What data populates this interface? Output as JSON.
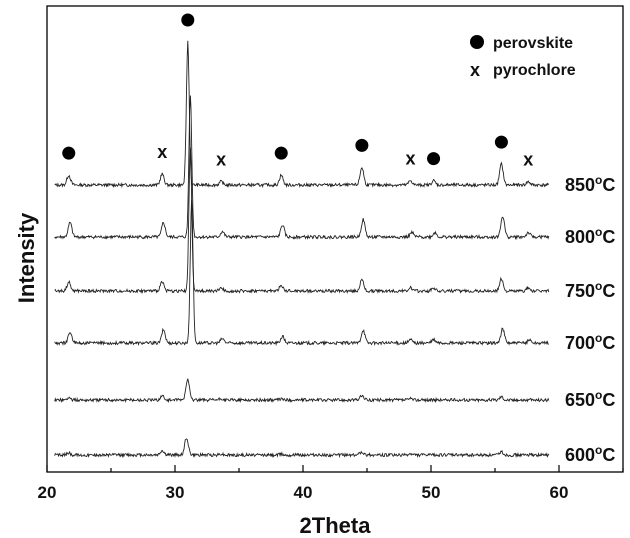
{
  "chart_data": {
    "type": "line",
    "title": "",
    "xlabel": "2Theta",
    "ylabel": "Intensity",
    "xlim": [
      20,
      65
    ],
    "x_ticks": [
      20,
      30,
      40,
      50,
      60
    ],
    "x_tick_labels": [
      "20",
      "30",
      "40",
      "50",
      "60"
    ],
    "grid": false,
    "legend": {
      "placement": "top-right",
      "entries": [
        {
          "symbol": "filled-circle",
          "label": "perovskite"
        },
        {
          "symbol": "x",
          "label": "pyrochlore"
        }
      ]
    },
    "series": [
      {
        "name": "850°C",
        "label_main": "850",
        "label_sup": "o",
        "label_unit": "C",
        "peaks": [
          [
            21.7,
            0.9
          ],
          [
            29.0,
            1.0
          ],
          [
            31.0,
            13.0
          ],
          [
            33.6,
            0.3
          ],
          [
            38.3,
            0.9
          ],
          [
            44.6,
            1.6
          ],
          [
            48.4,
            0.4
          ],
          [
            50.2,
            0.4
          ],
          [
            55.5,
            1.9
          ],
          [
            57.6,
            0.3
          ]
        ]
      },
      {
        "name": "800°C",
        "label_main": "800",
        "label_sup": "o",
        "label_unit": "C",
        "peaks": [
          [
            21.8,
            1.3
          ],
          [
            29.1,
            1.3
          ],
          [
            31.2,
            13.0
          ],
          [
            33.7,
            0.5
          ],
          [
            38.4,
            1.1
          ],
          [
            44.7,
            1.6
          ],
          [
            48.5,
            0.4
          ],
          [
            50.3,
            0.4
          ],
          [
            55.6,
            1.9
          ],
          [
            57.6,
            0.4
          ]
        ]
      },
      {
        "name": "750°C",
        "label_main": "750",
        "label_sup": "o",
        "label_unit": "C",
        "peaks": [
          [
            21.7,
            0.8
          ],
          [
            29.0,
            0.9
          ],
          [
            31.2,
            13.0
          ],
          [
            33.6,
            0.3
          ],
          [
            38.3,
            0.5
          ],
          [
            44.6,
            1.0
          ],
          [
            48.4,
            0.3
          ],
          [
            50.2,
            0.3
          ],
          [
            55.5,
            1.1
          ],
          [
            57.6,
            0.3
          ]
        ]
      },
      {
        "name": "700°C",
        "label_main": "700",
        "label_sup": "o",
        "label_unit": "C",
        "peaks": [
          [
            21.8,
            1.0
          ],
          [
            29.1,
            1.2
          ],
          [
            31.3,
            13.0
          ],
          [
            33.7,
            0.4
          ],
          [
            38.4,
            0.6
          ],
          [
            44.7,
            1.2
          ],
          [
            48.4,
            0.3
          ],
          [
            50.2,
            0.3
          ],
          [
            55.6,
            1.3
          ],
          [
            57.7,
            0.3
          ]
        ]
      },
      {
        "name": "650°C",
        "label_main": "650",
        "label_sup": "o",
        "label_unit": "C",
        "peaks": [
          [
            21.7,
            0.2
          ],
          [
            29.0,
            0.4
          ],
          [
            31.0,
            1.9
          ],
          [
            33.6,
            0.1
          ],
          [
            38.3,
            0.1
          ],
          [
            44.6,
            0.4
          ],
          [
            48.4,
            0.1
          ],
          [
            55.5,
            0.3
          ]
        ]
      },
      {
        "name": "600°C",
        "label_main": "600",
        "label_sup": "o",
        "label_unit": "C",
        "peaks": [
          [
            21.7,
            0.2
          ],
          [
            29.0,
            0.4
          ],
          [
            30.9,
            1.6
          ],
          [
            33.6,
            0.1
          ],
          [
            38.3,
            0.1
          ],
          [
            44.6,
            0.3
          ],
          [
            48.4,
            0.1
          ],
          [
            55.5,
            0.3
          ]
        ]
      }
    ],
    "annotations": [
      {
        "symbol": "filled-circle",
        "x": 21.7,
        "phase": "perovskite"
      },
      {
        "symbol": "x",
        "x": 29.0,
        "phase": "pyrochlore"
      },
      {
        "symbol": "filled-circle",
        "x": 31.0,
        "phase": "perovskite"
      },
      {
        "symbol": "x",
        "x": 33.6,
        "phase": "pyrochlore"
      },
      {
        "symbol": "filled-circle",
        "x": 38.3,
        "phase": "perovskite"
      },
      {
        "symbol": "filled-circle",
        "x": 44.6,
        "phase": "perovskite"
      },
      {
        "symbol": "x",
        "x": 48.4,
        "phase": "pyrochlore"
      },
      {
        "symbol": "filled-circle",
        "x": 50.2,
        "phase": "perovskite"
      },
      {
        "symbol": "filled-circle",
        "x": 55.5,
        "phase": "perovskite"
      },
      {
        "symbol": "x",
        "x": 57.6,
        "phase": "pyrochlore"
      }
    ]
  }
}
